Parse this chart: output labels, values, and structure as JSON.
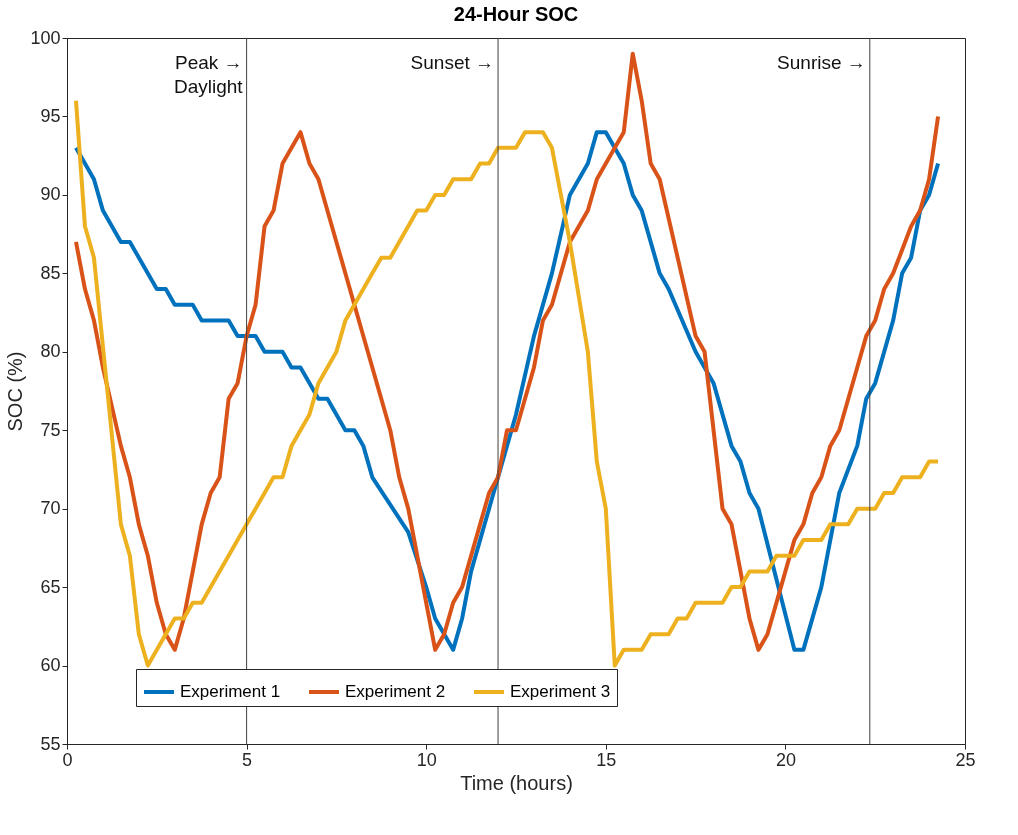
{
  "chart_data": {
    "type": "line",
    "title": "24-Hour SOC",
    "xlabel": "Time (hours)",
    "ylabel": "SOC (%)",
    "xlim": [
      0,
      25
    ],
    "xticks": [
      0,
      5,
      10,
      15,
      20,
      25
    ],
    "ylim": [
      55,
      100
    ],
    "yticks": [
      55,
      60,
      65,
      70,
      75,
      80,
      85,
      90,
      95,
      100
    ],
    "grid": false,
    "legend": "bottom",
    "marker": "none",
    "line_style": "solid",
    "ref_lines": [
      {
        "axis": "x",
        "value": 5,
        "label": "Peak →\nDaylight",
        "color": "#404040"
      },
      {
        "axis": "x",
        "value": 12,
        "label": "Sunset →",
        "color": "#404040"
      },
      {
        "axis": "x",
        "value": 22.35,
        "label": "Sunrise →",
        "color": "#404040"
      }
    ],
    "series": [
      {
        "name": "Experiment 1",
        "color": "#0072bd",
        "x": [
          0.25,
          0.75,
          1.0,
          1.5,
          1.75,
          2.5,
          2.75,
          3.0,
          3.5,
          3.75,
          4.5,
          4.75,
          5.25,
          5.5,
          6.0,
          6.25,
          6.5,
          7.0,
          7.25,
          7.75,
          8.0,
          8.25,
          8.5,
          9.5,
          10.0,
          10.25,
          10.75,
          11.0,
          11.25,
          12.0,
          12.5,
          13.0,
          13.5,
          14.0,
          14.25,
          14.5,
          14.75,
          15.0,
          15.5,
          15.75,
          16.0,
          16.5,
          16.75,
          17.5,
          18.0,
          18.5,
          18.75,
          19.0,
          19.25,
          20.25,
          20.5,
          21.0,
          21.5,
          22.0,
          22.25,
          22.5,
          23.0,
          23.25,
          23.5,
          23.75,
          24.0,
          24.25
        ],
        "values": [
          93,
          91,
          89,
          87,
          87,
          84,
          84,
          83,
          83,
          82,
          82,
          81,
          81,
          80,
          80,
          79,
          79,
          77,
          77,
          75,
          75,
          74,
          72,
          68.5,
          65,
          63,
          61,
          63,
          66,
          72,
          76,
          81,
          85,
          90,
          91,
          92,
          94,
          94,
          92,
          90,
          89,
          85,
          84,
          80,
          78,
          74,
          73,
          71,
          70,
          61,
          61,
          65,
          71,
          74,
          77,
          78,
          82,
          85,
          86,
          89,
          90,
          92
        ]
      },
      {
        "name": "Experiment 2",
        "color": "#d95319",
        "x": [
          0.25,
          0.5,
          0.75,
          1.0,
          1.5,
          1.75,
          2.0,
          2.25,
          2.5,
          2.75,
          3.0,
          3.25,
          3.5,
          3.75,
          4.0,
          4.25,
          4.5,
          4.75,
          5.0,
          5.25,
          5.5,
          5.75,
          6.0,
          6.5,
          6.75,
          7.0,
          7.5,
          8.0,
          8.5,
          9.0,
          9.25,
          9.5,
          10.25,
          10.5,
          10.75,
          11.0,
          11.75,
          12.0,
          12.25,
          12.5,
          13.0,
          13.25,
          13.5,
          14.0,
          14.25,
          14.5,
          14.75,
          15.25,
          15.5,
          15.75,
          16.0,
          16.25,
          16.5,
          17.0,
          17.5,
          17.75,
          18.25,
          18.5,
          19.0,
          19.25,
          19.5,
          20.0,
          20.25,
          20.5,
          20.75,
          21.0,
          21.25,
          21.5,
          22.0,
          22.25,
          22.5,
          22.75,
          23.0,
          23.5,
          23.75,
          24.0,
          24.25
        ],
        "values": [
          87,
          84,
          82,
          79,
          74,
          72,
          69,
          67,
          64,
          62,
          61,
          63,
          66,
          69,
          71,
          72,
          77,
          78,
          81,
          83,
          88,
          89,
          92,
          94,
          92,
          91,
          87,
          83,
          79,
          75,
          72,
          70,
          61,
          62,
          64,
          65,
          71,
          72,
          75,
          75,
          79,
          82,
          83,
          87,
          88,
          89,
          91,
          93,
          94,
          99,
          96,
          92,
          91,
          86,
          81,
          80,
          70,
          69,
          63,
          61,
          62,
          66,
          68,
          69,
          71,
          72,
          74,
          75,
          79,
          81,
          82,
          84,
          85,
          88,
          89,
          91,
          95
        ]
      },
      {
        "name": "Experiment 3",
        "color": "#edb120",
        "x": [
          0.25,
          0.5,
          0.75,
          1.5,
          1.75,
          2.0,
          2.25,
          3.0,
          3.25,
          3.5,
          3.75,
          5.0,
          5.25,
          5.75,
          6.0,
          6.25,
          6.75,
          7.0,
          7.5,
          7.75,
          8.5,
          8.75,
          9.0,
          9.75,
          10.0,
          10.25,
          10.5,
          10.75,
          11.25,
          11.5,
          11.75,
          12.0,
          12.5,
          12.75,
          13.25,
          13.5,
          14.0,
          14.5,
          14.75,
          15.0,
          15.25,
          15.5,
          16.0,
          16.25,
          16.75,
          17.0,
          17.25,
          17.5,
          18.25,
          18.5,
          18.75,
          19.0,
          19.5,
          19.75,
          20.25,
          20.5,
          21.0,
          21.25,
          21.75,
          22.0,
          22.5,
          22.75,
          23.0,
          23.25,
          23.75,
          24.0,
          24.25
        ],
        "values": [
          96,
          88,
          86,
          69,
          67,
          62,
          60,
          63,
          63,
          64,
          64,
          69,
          70,
          72,
          72,
          74,
          76,
          78,
          80,
          82,
          85,
          86,
          86,
          89,
          89,
          90,
          90,
          91,
          91,
          92,
          92,
          93,
          93,
          94,
          94,
          93,
          87,
          80,
          73,
          70,
          60,
          61,
          61,
          62,
          62,
          63,
          63,
          64,
          64,
          65,
          65,
          66,
          66,
          67,
          67,
          68,
          68,
          69,
          69,
          70,
          70,
          71,
          71,
          72,
          72,
          73,
          73
        ]
      }
    ]
  }
}
